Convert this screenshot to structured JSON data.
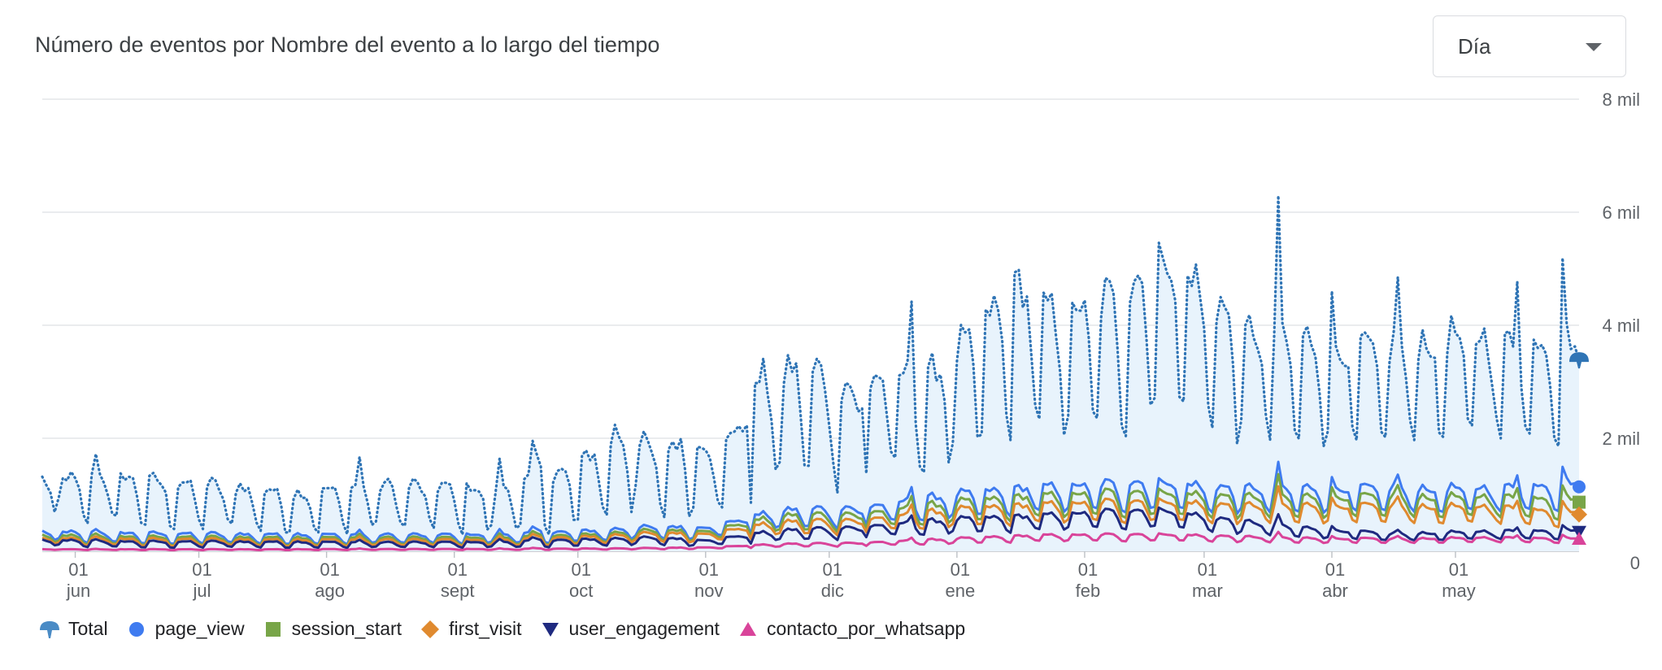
{
  "header": {
    "title": "Número de eventos por Nombre del evento a lo largo del tiempo"
  },
  "controls": {
    "granularity": {
      "selected": "Día"
    }
  },
  "legend": [
    {
      "label": "Total",
      "icon": "cloud-icon",
      "color": "#4a8bc5"
    },
    {
      "label": "page_view",
      "icon": "circle-icon",
      "color": "#3f7bf0"
    },
    {
      "label": "session_start",
      "icon": "square-icon",
      "color": "#78a548"
    },
    {
      "label": "first_visit",
      "icon": "diamond-icon",
      "color": "#e08a2f"
    },
    {
      "label": "user_engagement",
      "icon": "triangle-down-icon",
      "color": "#1f2a80"
    },
    {
      "label": "contacto_por_whatsapp",
      "icon": "triangle-up-icon",
      "color": "#d9449a"
    }
  ],
  "chart_data": {
    "type": "line",
    "x_start": "2023-05-24",
    "x_end": "2024-05-31",
    "x_ticks": [
      {
        "date": "2023-06-01",
        "day": "01",
        "month": "jun"
      },
      {
        "date": "2023-07-01",
        "day": "01",
        "month": "jul"
      },
      {
        "date": "2023-08-01",
        "day": "01",
        "month": "ago"
      },
      {
        "date": "2023-09-01",
        "day": "01",
        "month": "sept"
      },
      {
        "date": "2023-10-01",
        "day": "01",
        "month": "oct"
      },
      {
        "date": "2023-11-01",
        "day": "01",
        "month": "nov"
      },
      {
        "date": "2023-12-01",
        "day": "01",
        "month": "dic"
      },
      {
        "date": "2024-01-01",
        "day": "01",
        "month": "ene"
      },
      {
        "date": "2024-02-01",
        "day": "01",
        "month": "feb"
      },
      {
        "date": "2024-03-01",
        "day": "01",
        "month": "mar"
      },
      {
        "date": "2024-04-01",
        "day": "01",
        "month": "abr"
      },
      {
        "date": "2024-05-01",
        "day": "01",
        "month": "may"
      }
    ],
    "y_axis": {
      "position": "right",
      "ylim": [
        0,
        8000
      ],
      "ticks": [
        {
          "value": 0,
          "label": "0"
        },
        {
          "value": 2000,
          "label": "2 mil"
        },
        {
          "value": 4000,
          "label": "4 mil"
        },
        {
          "value": 6000,
          "label": "6 mil"
        },
        {
          "value": 8000,
          "label": "8 mil"
        }
      ]
    },
    "grid": true,
    "legend_position": "bottom-left",
    "series": [
      {
        "name": "Total",
        "style": "dotted",
        "fill": "#e8f3fc",
        "color": "#2f74b5",
        "points": [
          [
            "2023-05-24",
            950
          ],
          [
            "2023-06-10",
            1000
          ],
          [
            "2023-06-25",
            900
          ],
          [
            "2023-07-10",
            850
          ],
          [
            "2023-07-25",
            750
          ],
          [
            "2023-08-10",
            850
          ],
          [
            "2023-08-25",
            850
          ],
          [
            "2023-09-10",
            800
          ],
          [
            "2023-09-25",
            950
          ],
          [
            "2023-10-01",
            1100
          ],
          [
            "2023-10-10",
            1500
          ],
          [
            "2023-10-20",
            1300
          ],
          [
            "2023-10-28",
            1450
          ],
          [
            "2023-11-05",
            1350
          ],
          [
            "2023-11-15",
            2300
          ],
          [
            "2023-11-25",
            2500
          ],
          [
            "2023-12-05",
            2200
          ],
          [
            "2023-12-15",
            2400
          ],
          [
            "2023-12-25",
            2400
          ],
          [
            "2024-01-05",
            3000
          ],
          [
            "2024-01-15",
            3700
          ],
          [
            "2024-01-25",
            3300
          ],
          [
            "2024-02-05",
            3500
          ],
          [
            "2024-02-12",
            3700
          ],
          [
            "2024-02-20",
            4200
          ],
          [
            "2024-03-01",
            3700
          ],
          [
            "2024-03-10",
            3100
          ],
          [
            "2024-03-20",
            3100
          ],
          [
            "2024-04-01",
            2900
          ],
          [
            "2024-04-15",
            2900
          ],
          [
            "2024-05-01",
            3100
          ],
          [
            "2024-05-15",
            3000
          ],
          [
            "2024-05-31",
            3050
          ]
        ],
        "amp": [
          [
            0,
            0.5
          ],
          [
            0.35,
            0.6
          ],
          [
            0.6,
            0.42
          ],
          [
            1,
            0.35
          ]
        ]
      },
      {
        "name": "page_view",
        "style": "solid",
        "color": "#3f7bf0",
        "points": [
          [
            "2023-05-24",
            270
          ],
          [
            "2023-06-15",
            250
          ],
          [
            "2023-07-15",
            240
          ],
          [
            "2023-08-15",
            230
          ],
          [
            "2023-09-15",
            240
          ],
          [
            "2023-10-01",
            280
          ],
          [
            "2023-10-20",
            350
          ],
          [
            "2023-11-01",
            350
          ],
          [
            "2023-11-20",
            600
          ],
          [
            "2023-12-10",
            650
          ],
          [
            "2024-01-01",
            850
          ],
          [
            "2024-01-20",
            950
          ],
          [
            "2024-02-05",
            1000
          ],
          [
            "2024-02-20",
            1050
          ],
          [
            "2024-03-05",
            950
          ],
          [
            "2024-03-25",
            950
          ],
          [
            "2024-04-15",
            950
          ],
          [
            "2024-05-10",
            950
          ],
          [
            "2024-05-31",
            1050
          ]
        ],
        "amp": [
          [
            0,
            0.45
          ],
          [
            0.35,
            0.4
          ],
          [
            0.6,
            0.3
          ],
          [
            1,
            0.28
          ]
        ]
      },
      {
        "name": "session_start",
        "style": "solid",
        "color": "#78a548",
        "points": [
          [
            "2023-05-24",
            220
          ],
          [
            "2023-06-15",
            200
          ],
          [
            "2023-07-15",
            195
          ],
          [
            "2023-08-15",
            190
          ],
          [
            "2023-09-15",
            195
          ],
          [
            "2023-10-01",
            230
          ],
          [
            "2023-10-20",
            300
          ],
          [
            "2023-11-01",
            300
          ],
          [
            "2023-11-20",
            520
          ],
          [
            "2023-12-10",
            560
          ],
          [
            "2024-01-01",
            730
          ],
          [
            "2024-01-20",
            820
          ],
          [
            "2024-02-05",
            870
          ],
          [
            "2024-02-20",
            900
          ],
          [
            "2024-03-05",
            820
          ],
          [
            "2024-03-25",
            820
          ],
          [
            "2024-04-15",
            820
          ],
          [
            "2024-05-10",
            820
          ],
          [
            "2024-05-31",
            800
          ]
        ],
        "amp": [
          [
            0,
            0.45
          ],
          [
            0.35,
            0.4
          ],
          [
            0.6,
            0.3
          ],
          [
            1,
            0.28
          ]
        ]
      },
      {
        "name": "first_visit",
        "style": "solid",
        "color": "#e08a2f",
        "points": [
          [
            "2023-05-24",
            180
          ],
          [
            "2023-06-15",
            170
          ],
          [
            "2023-07-15",
            165
          ],
          [
            "2023-08-15",
            160
          ],
          [
            "2023-09-15",
            165
          ],
          [
            "2023-10-01",
            200
          ],
          [
            "2023-10-20",
            260
          ],
          [
            "2023-11-01",
            260
          ],
          [
            "2023-11-20",
            430
          ],
          [
            "2023-12-10",
            470
          ],
          [
            "2024-01-01",
            620
          ],
          [
            "2024-01-20",
            690
          ],
          [
            "2024-02-05",
            730
          ],
          [
            "2024-02-20",
            760
          ],
          [
            "2024-03-05",
            690
          ],
          [
            "2024-03-25",
            690
          ],
          [
            "2024-04-15",
            680
          ],
          [
            "2024-05-10",
            670
          ],
          [
            "2024-05-31",
            600
          ]
        ],
        "amp": [
          [
            0,
            0.45
          ],
          [
            0.35,
            0.4
          ],
          [
            0.6,
            0.3
          ],
          [
            1,
            0.28
          ]
        ]
      },
      {
        "name": "user_engagement",
        "style": "solid",
        "color": "#1f2a80",
        "points": [
          [
            "2023-05-24",
            150
          ],
          [
            "2023-06-15",
            130
          ],
          [
            "2023-07-15",
            130
          ],
          [
            "2023-08-15",
            120
          ],
          [
            "2023-09-15",
            130
          ],
          [
            "2023-10-01",
            160
          ],
          [
            "2023-10-20",
            190
          ],
          [
            "2023-11-01",
            160
          ],
          [
            "2023-11-20",
            300
          ],
          [
            "2023-12-10",
            360
          ],
          [
            "2024-01-01",
            470
          ],
          [
            "2024-01-20",
            520
          ],
          [
            "2024-02-05",
            580
          ],
          [
            "2024-02-20",
            620
          ],
          [
            "2024-03-05",
            480
          ],
          [
            "2024-03-25",
            350
          ],
          [
            "2024-04-15",
            260
          ],
          [
            "2024-05-10",
            300
          ],
          [
            "2024-05-31",
            320
          ]
        ],
        "amp": [
          [
            0,
            0.5
          ],
          [
            0.35,
            0.45
          ],
          [
            0.6,
            0.32
          ],
          [
            1,
            0.3
          ]
        ]
      },
      {
        "name": "contacto_por_whatsapp",
        "style": "solid",
        "color": "#d9449a",
        "points": [
          [
            "2023-05-24",
            30
          ],
          [
            "2023-07-15",
            30
          ],
          [
            "2023-09-15",
            35
          ],
          [
            "2023-10-15",
            45
          ],
          [
            "2023-11-01",
            60
          ],
          [
            "2023-11-20",
            110
          ],
          [
            "2023-12-10",
            130
          ],
          [
            "2024-01-01",
            190
          ],
          [
            "2024-01-20",
            240
          ],
          [
            "2024-02-05",
            250
          ],
          [
            "2024-02-20",
            260
          ],
          [
            "2024-03-05",
            230
          ],
          [
            "2024-03-25",
            200
          ],
          [
            "2024-04-15",
            190
          ],
          [
            "2024-05-10",
            210
          ],
          [
            "2024-05-31",
            200
          ]
        ],
        "amp": [
          [
            0,
            0.3
          ],
          [
            0.5,
            0.3
          ],
          [
            1,
            0.25
          ]
        ]
      }
    ]
  }
}
